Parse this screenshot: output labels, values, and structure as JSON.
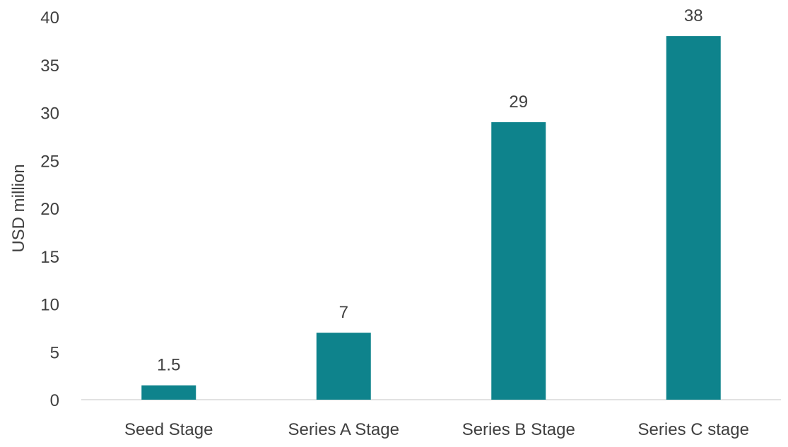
{
  "chart_data": {
    "type": "bar",
    "categories": [
      "Seed Stage",
      "Series A Stage",
      "Series B Stage",
      "Series C stage"
    ],
    "values": [
      1.5,
      7,
      29,
      38
    ],
    "data_labels": [
      "1.5",
      "7",
      "29",
      "38"
    ],
    "ylabel": "USD million",
    "ylim": [
      0,
      40
    ],
    "yticks": [
      0,
      5,
      10,
      15,
      20,
      25,
      30,
      35,
      40
    ],
    "grid": false,
    "legend": "none",
    "bar_color": "#0e838c"
  }
}
